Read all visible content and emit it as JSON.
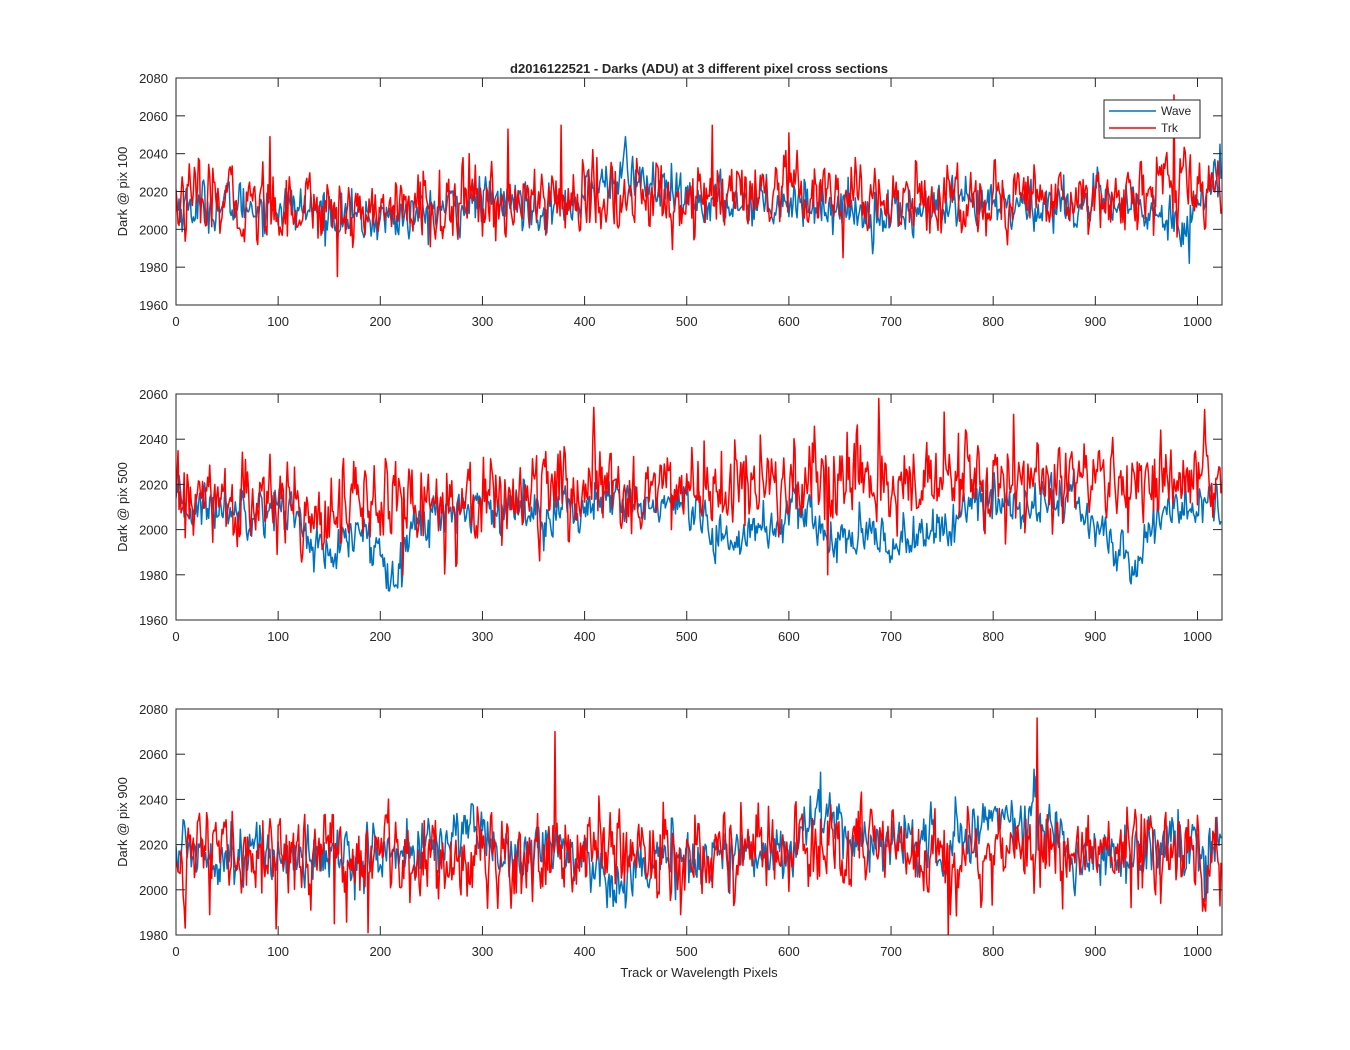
{
  "title": "d2016122521 - Darks (ADU) at 3 different pixel cross sections",
  "xlabel": "Track or Wavelength Pixels",
  "colors": {
    "wave": "#0072BD",
    "trk": "#FF0000",
    "axes": "#262626",
    "background": "#ffffff"
  },
  "chart_data": [
    {
      "type": "line",
      "ylabel": "Dark @ pix 100",
      "xlim": [
        0,
        1024
      ],
      "ylim": [
        1960,
        2080
      ],
      "x_ticks": [
        "0",
        "100",
        "200",
        "300",
        "400",
        "500",
        "600",
        "700",
        "800",
        "900",
        "1000"
      ],
      "y_ticks": [
        "1960",
        "1980",
        "2000",
        "2020",
        "2040",
        "2060",
        "2080"
      ],
      "grid": false,
      "legend": {
        "placement": "top-right",
        "entries": [
          "Wave",
          "Trk"
        ]
      },
      "series": [
        {
          "name": "Wave",
          "color": "#0072BD",
          "n_points": 1024,
          "baseline": 2012,
          "noise_amplitude": 6,
          "trend": [
            [
              0,
              2012
            ],
            [
              100,
              2013
            ],
            [
              180,
              2005
            ],
            [
              220,
              2006
            ],
            [
              300,
              2015
            ],
            [
              380,
              2012
            ],
            [
              440,
              2030
            ],
            [
              500,
              2014
            ],
            [
              600,
              2016
            ],
            [
              680,
              2008
            ],
            [
              800,
              2012
            ],
            [
              900,
              2014
            ],
            [
              990,
              2005
            ],
            [
              1024,
              2030
            ]
          ],
          "extremes": [
            [
              440,
              2049
            ],
            [
              992,
              1982
            ],
            [
              1022,
              2045
            ]
          ]
        },
        {
          "name": "Trk",
          "color": "#FF0000",
          "n_points": 1024,
          "baseline": 2015,
          "noise_amplitude": 9,
          "trend": [
            [
              0,
              2014
            ],
            [
              150,
              2012
            ],
            [
              200,
              2010
            ],
            [
              400,
              2016
            ],
            [
              600,
              2016
            ],
            [
              800,
              2016
            ],
            [
              900,
              2018
            ],
            [
              1024,
              2022
            ]
          ],
          "extremes": [
            [
              158,
              1975
            ],
            [
              92,
              2049
            ],
            [
              325,
              2053
            ],
            [
              377,
              2055
            ],
            [
              525,
              2055
            ],
            [
              600,
              2051
            ],
            [
              977,
              2071
            ],
            [
              653,
              1985
            ]
          ]
        }
      ]
    },
    {
      "type": "line",
      "ylabel": "Dark @ pix 500",
      "xlim": [
        0,
        1024
      ],
      "ylim": [
        1960,
        2060
      ],
      "x_ticks": [
        "0",
        "100",
        "200",
        "300",
        "400",
        "500",
        "600",
        "700",
        "800",
        "900",
        "1000"
      ],
      "y_ticks": [
        "1960",
        "1980",
        "2000",
        "2020",
        "2040",
        "2060"
      ],
      "grid": false,
      "series": [
        {
          "name": "Wave",
          "color": "#0072BD",
          "n_points": 1024,
          "baseline": 2010,
          "noise_amplitude": 5,
          "trend": [
            [
              0,
              2010
            ],
            [
              110,
              2010
            ],
            [
              150,
              1985
            ],
            [
              180,
              2000
            ],
            [
              210,
              1983
            ],
            [
              240,
              2005
            ],
            [
              300,
              2012
            ],
            [
              350,
              2008
            ],
            [
              450,
              2012
            ],
            [
              500,
              2008
            ],
            [
              530,
              1995
            ],
            [
              570,
              2000
            ],
            [
              620,
              2008
            ],
            [
              640,
              1995
            ],
            [
              700,
              1995
            ],
            [
              740,
              1998
            ],
            [
              780,
              2010
            ],
            [
              880,
              2014
            ],
            [
              900,
              2000
            ],
            [
              940,
              1983
            ],
            [
              960,
              2008
            ],
            [
              1024,
              2012
            ]
          ],
          "extremes": [
            [
              206,
              1974
            ],
            [
              935,
              1976
            ],
            [
              528,
              1985
            ]
          ]
        },
        {
          "name": "Trk",
          "color": "#FF0000",
          "n_points": 1024,
          "baseline": 2015,
          "noise_amplitude": 9,
          "trend": [
            [
              0,
              2012
            ],
            [
              150,
              2010
            ],
            [
              250,
              2013
            ],
            [
              450,
              2018
            ],
            [
              600,
              2018
            ],
            [
              700,
              2020
            ],
            [
              900,
              2020
            ],
            [
              1024,
              2020
            ]
          ],
          "extremes": [
            [
              688,
              2058
            ],
            [
              752,
              2052
            ],
            [
              820,
              2051
            ],
            [
              638,
              1980
            ],
            [
              222,
              1980
            ],
            [
              275,
              1985
            ]
          ]
        }
      ]
    },
    {
      "type": "line",
      "ylabel": "Dark @ pix 900",
      "xlim": [
        0,
        1024
      ],
      "ylim": [
        1980,
        2080
      ],
      "x_ticks": [
        "0",
        "100",
        "200",
        "300",
        "400",
        "500",
        "600",
        "700",
        "800",
        "900",
        "1000"
      ],
      "y_ticks": [
        "1980",
        "2000",
        "2020",
        "2040",
        "2060",
        "2080"
      ],
      "grid": false,
      "series": [
        {
          "name": "Wave",
          "color": "#0072BD",
          "n_points": 1024,
          "baseline": 2016,
          "noise_amplitude": 6,
          "trend": [
            [
              0,
              2018
            ],
            [
              150,
              2014
            ],
            [
              250,
              2018
            ],
            [
              290,
              2030
            ],
            [
              320,
              2015
            ],
            [
              380,
              2020
            ],
            [
              420,
              2005
            ],
            [
              450,
              2010
            ],
            [
              520,
              2015
            ],
            [
              600,
              2018
            ],
            [
              630,
              2035
            ],
            [
              660,
              2022
            ],
            [
              760,
              2020
            ],
            [
              800,
              2032
            ],
            [
              840,
              2034
            ],
            [
              880,
              2015
            ],
            [
              1024,
              2018
            ]
          ],
          "extremes": [
            [
              631,
              2052
            ],
            [
              440,
              1992
            ],
            [
              1007,
              1995
            ]
          ]
        },
        {
          "name": "Trk",
          "color": "#FF0000",
          "n_points": 1024,
          "baseline": 2016,
          "noise_amplitude": 9,
          "trend": [
            [
              0,
              2016
            ],
            [
              200,
              2014
            ],
            [
              400,
              2016
            ],
            [
              600,
              2018
            ],
            [
              800,
              2018
            ],
            [
              1024,
              2018
            ]
          ],
          "extremes": [
            [
              371,
              2070
            ],
            [
              843,
              2076
            ],
            [
              756,
              1980
            ],
            [
              188,
              1981
            ],
            [
              155,
              1985
            ],
            [
              33,
              1989
            ],
            [
              494,
              1989
            ]
          ]
        }
      ]
    }
  ]
}
